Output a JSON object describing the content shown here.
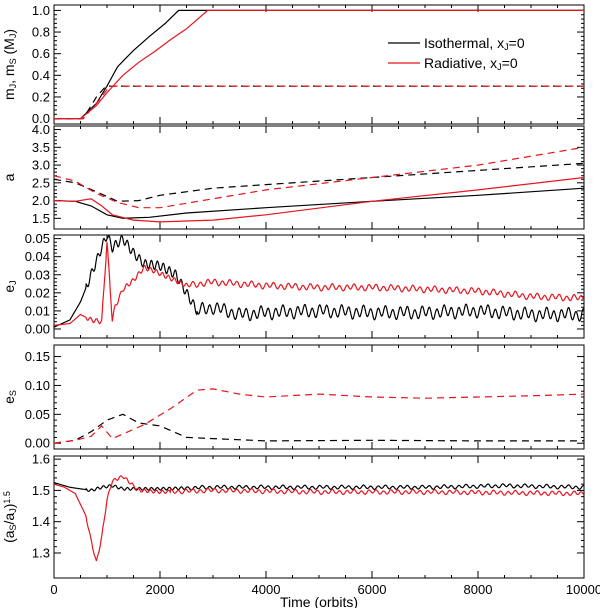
{
  "chart_data": {
    "type": "line",
    "xlabel": "Time (orbits)",
    "xlim": [
      0,
      10000
    ],
    "xticks": [
      0,
      2000,
      4000,
      6000,
      8000,
      10000
    ],
    "colors": {
      "isothermal": "#000000",
      "radiative": "#e8141e"
    },
    "legend": {
      "position": "top-right",
      "entries": [
        {
          "key": "isothermal",
          "label_pre": "Isothermal, x",
          "label_sub": "J",
          "label_post": "=0",
          "color": "#000000"
        },
        {
          "key": "radiative",
          "label_pre": "Radiative, x",
          "label_sub": "J",
          "label_post": "=0",
          "color": "#e8141e"
        }
      ]
    },
    "panels": [
      {
        "id": "mass",
        "ylabel_parts": [
          [
            "m",
            ""
          ],
          [
            "J",
            "sub"
          ],
          [
            ", m",
            ""
          ],
          [
            "S",
            "sub"
          ],
          [
            " (M",
            ""
          ],
          [
            "J",
            "sub"
          ],
          [
            ")",
            ""
          ]
        ],
        "ylim": [
          -0.05,
          1.05
        ],
        "yticks": [
          0.0,
          0.2,
          0.4,
          0.6,
          0.8,
          1.0
        ],
        "ytick_labels": [
          "0.0",
          "0.2",
          "0.4",
          "0.6",
          "0.8",
          "1.0"
        ],
        "series": [
          {
            "name": "Isothermal m_J",
            "color": "isothermal",
            "dash": false,
            "x": [
              0,
              500,
              800,
              1000,
              1200,
              1500,
              1800,
              2100,
              2350,
              10000
            ],
            "y": [
              0,
              0,
              0.14,
              0.3,
              0.48,
              0.63,
              0.76,
              0.88,
              1.0,
              1.0
            ]
          },
          {
            "name": "Radiative m_J",
            "color": "radiative",
            "dash": false,
            "x": [
              0,
              500,
              800,
              1000,
              1300,
              1600,
              1900,
              2200,
              2500,
              2900,
              10000
            ],
            "y": [
              0,
              0,
              0.12,
              0.24,
              0.4,
              0.52,
              0.62,
              0.73,
              0.83,
              1.0,
              1.0
            ]
          },
          {
            "name": "Isothermal m_S",
            "color": "isothermal",
            "dash": true,
            "x": [
              0,
              550,
              800,
              980,
              10000
            ],
            "y": [
              0,
              0,
              0.2,
              0.3,
              0.3
            ]
          },
          {
            "name": "Radiative m_S",
            "color": "radiative",
            "dash": true,
            "x": [
              0,
              550,
              850,
              1050,
              10000
            ],
            "y": [
              0,
              0,
              0.17,
              0.3,
              0.3
            ]
          }
        ]
      },
      {
        "id": "semimajor",
        "ylabel_parts": [
          [
            "a",
            ""
          ]
        ],
        "ylim": [
          1.2,
          4.1
        ],
        "yticks": [
          1.5,
          2.0,
          2.5,
          3.0,
          3.5,
          4.0
        ],
        "ytick_labels": [
          "1.5",
          "2.0",
          "2.5",
          "3.0",
          "3.5",
          "4.0"
        ],
        "series": [
          {
            "name": "Isothermal a_J",
            "color": "isothermal",
            "dash": false,
            "x": [
              0,
              400,
              700,
              1000,
              1300,
              1800,
              2500,
              4000,
              6000,
              8000,
              10000
            ],
            "y": [
              2.0,
              1.98,
              1.85,
              1.6,
              1.5,
              1.53,
              1.65,
              1.8,
              1.98,
              2.15,
              2.35
            ]
          },
          {
            "name": "Radiative a_J",
            "color": "radiative",
            "dash": false,
            "x": [
              0,
              400,
              700,
              900,
              1100,
              1500,
              2000,
              3000,
              4000,
              6000,
              8000,
              10000
            ],
            "y": [
              2.0,
              1.98,
              2.05,
              1.85,
              1.6,
              1.45,
              1.4,
              1.45,
              1.6,
              1.98,
              2.3,
              2.65
            ]
          },
          {
            "name": "Isothermal a_S",
            "color": "isothermal",
            "dash": true,
            "x": [
              0,
              400,
              800,
              1200,
              1600,
              2000,
              3000,
              4000,
              6000,
              8000,
              10000
            ],
            "y": [
              2.6,
              2.5,
              2.25,
              1.98,
              2.0,
              2.15,
              2.35,
              2.45,
              2.65,
              2.85,
              3.05
            ]
          },
          {
            "name": "Radiative a_S",
            "color": "radiative",
            "dash": true,
            "x": [
              0,
              400,
              800,
              1200,
              1600,
              2000,
              3000,
              4000,
              6000,
              8000,
              10000
            ],
            "y": [
              2.7,
              2.55,
              2.2,
              1.95,
              1.8,
              1.8,
              2.05,
              2.3,
              2.65,
              3.0,
              3.5
            ]
          }
        ]
      },
      {
        "id": "eJ",
        "ylabel_parts": [
          [
            "e",
            ""
          ],
          [
            "J",
            "sub"
          ]
        ],
        "ylim": [
          -0.005,
          0.052
        ],
        "yticks": [
          0.0,
          0.01,
          0.02,
          0.03,
          0.04,
          0.05
        ],
        "ytick_labels": [
          "0.00",
          "0.01",
          "0.02",
          "0.03",
          "0.04",
          "0.05"
        ],
        "series": [
          {
            "name": "Isothermal e_J",
            "color": "isothermal",
            "dash": false,
            "x": [
              0,
              300,
              500,
              700,
              900,
              1000,
              1100,
              1300,
              1500,
              1700,
              2000,
              2300,
              2500,
              2700,
              3000,
              3500,
              4000,
              5000,
              6000,
              7000,
              8000,
              9000,
              10000
            ],
            "y": [
              0.001,
              0.005,
              0.015,
              0.03,
              0.045,
              0.052,
              0.045,
              0.05,
              0.042,
              0.036,
              0.035,
              0.03,
              0.02,
              0.01,
              0.012,
              0.008,
              0.009,
              0.01,
              0.009,
              0.009,
              0.01,
              0.008,
              0.008
            ],
            "wiggle": 0.004,
            "wiggle_start": 2700
          },
          {
            "name": "Radiative e_J",
            "color": "radiative",
            "dash": false,
            "x": [
              0,
              300,
              500,
              700,
              900,
              1000,
              1100,
              1150,
              1300,
              1500,
              1700,
              1900,
              2200,
              2500,
              3000,
              4000,
              5000,
              6000,
              7000,
              8000,
              9000,
              10000
            ],
            "y": [
              0.002,
              0.003,
              0.008,
              0.005,
              0.004,
              0.048,
              0.005,
              0.012,
              0.022,
              0.027,
              0.034,
              0.032,
              0.028,
              0.024,
              0.026,
              0.024,
              0.023,
              0.023,
              0.022,
              0.021,
              0.018,
              0.017
            ],
            "wiggle": 0.002,
            "wiggle_start": 2500
          }
        ]
      },
      {
        "id": "eS",
        "ylabel_parts": [
          [
            "e",
            ""
          ],
          [
            "S",
            "sub"
          ]
        ],
        "ylim": [
          -0.01,
          0.17
        ],
        "yticks": [
          0.0,
          0.05,
          0.1,
          0.15
        ],
        "ytick_labels": [
          "0.00",
          "0.05",
          "0.10",
          "0.15"
        ],
        "series": [
          {
            "name": "Isothermal e_S",
            "color": "isothermal",
            "dash": true,
            "x": [
              0,
              400,
              700,
              1000,
              1300,
              1600,
              2000,
              2500,
              3000,
              4000,
              6000,
              8000,
              10000
            ],
            "y": [
              0.0,
              0.005,
              0.02,
              0.04,
              0.05,
              0.035,
              0.03,
              0.01,
              0.008,
              0.004,
              0.005,
              0.004,
              0.004
            ]
          },
          {
            "name": "Radiative e_S",
            "color": "radiative",
            "dash": true,
            "x": [
              0,
              400,
              700,
              900,
              1100,
              1400,
              1700,
              2200,
              2700,
              3000,
              3500,
              4000,
              5000,
              6000,
              7000,
              8000,
              9000,
              10000
            ],
            "y": [
              0.0,
              0.005,
              0.012,
              0.03,
              0.008,
              0.02,
              0.032,
              0.06,
              0.092,
              0.094,
              0.085,
              0.08,
              0.085,
              0.08,
              0.078,
              0.08,
              0.082,
              0.085
            ]
          }
        ]
      },
      {
        "id": "ratio",
        "ylabel_parts": [
          [
            "(a",
            ""
          ],
          [
            "S",
            "sub"
          ],
          [
            "/a",
            ""
          ],
          [
            "J",
            "sub"
          ],
          [
            ")",
            ""
          ],
          [
            "1.5",
            "sup"
          ]
        ],
        "ylim": [
          1.22,
          1.61
        ],
        "yticks": [
          1.3,
          1.4,
          1.5,
          1.6
        ],
        "ytick_labels": [
          "1.3",
          "1.4",
          "1.5",
          "1.6"
        ],
        "series": [
          {
            "name": "Isothermal ratio",
            "color": "isothermal",
            "dash": false,
            "x": [
              0,
              300,
              500,
              700,
              900,
              1100,
              1300,
              2000,
              3000,
              5000,
              7000,
              8500,
              10000
            ],
            "y": [
              1.525,
              1.51,
              1.505,
              1.5,
              1.51,
              1.515,
              1.505,
              1.505,
              1.51,
              1.51,
              1.51,
              1.515,
              1.51
            ],
            "wiggle": 0.007,
            "wiggle_start": 2500
          },
          {
            "name": "Radiative ratio",
            "color": "radiative",
            "dash": false,
            "x": [
              0,
              200,
              400,
              600,
              700,
              800,
              900,
              1000,
              1100,
              1300,
              1600,
              2000,
              3000,
              5000,
              7000,
              10000
            ],
            "y": [
              1.52,
              1.51,
              1.49,
              1.42,
              1.34,
              1.27,
              1.35,
              1.47,
              1.53,
              1.545,
              1.5,
              1.495,
              1.5,
              1.495,
              1.495,
              1.49
            ],
            "wiggle": 0.008,
            "wiggle_start": 2200
          }
        ]
      }
    ]
  }
}
